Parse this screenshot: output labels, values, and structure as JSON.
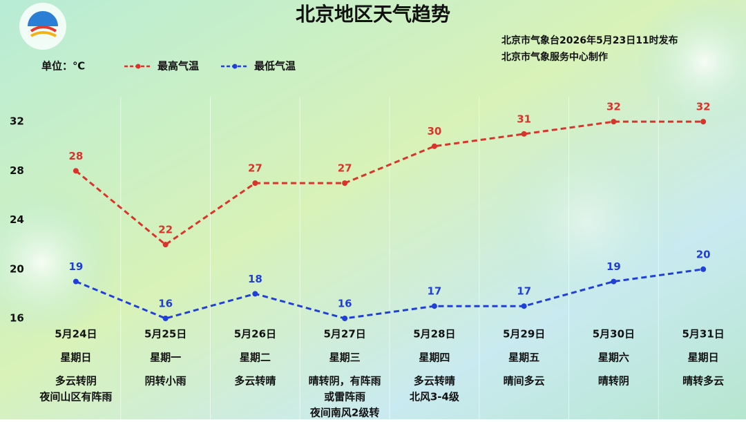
{
  "chart_data": {
    "type": "line",
    "title": "北京地区天气趋势",
    "publisher": [
      "北京市气象台2026年5月23日11时发布",
      "北京市气象服务中心制作"
    ],
    "unit_label": "单位：℃",
    "categories": [
      "5月24日",
      "5月25日",
      "5月26日",
      "5月27日",
      "5月28日",
      "5月29日",
      "5月30日",
      "5月31日"
    ],
    "weekdays": [
      "星期日",
      "星期一",
      "星期二",
      "星期三",
      "星期四",
      "星期五",
      "星期六",
      "星期日"
    ],
    "weather": [
      [
        "多云转阴",
        "夜间山区有阵雨"
      ],
      [
        "阴转小雨"
      ],
      [
        "多云转晴"
      ],
      [
        "晴转阴，有阵雨",
        "或雷阵雨",
        "夜间南风2级转"
      ],
      [
        "多云转晴",
        "北风3-4级"
      ],
      [
        "晴间多云"
      ],
      [
        "晴转阴"
      ],
      [
        "晴转多云"
      ]
    ],
    "series": [
      {
        "name": "最高气温",
        "color": "#d9342b",
        "values": [
          28,
          22,
          27,
          27,
          30,
          31,
          32,
          32
        ]
      },
      {
        "name": "最低气温",
        "color": "#1f3fd6",
        "values": [
          19,
          16,
          18,
          16,
          17,
          17,
          19,
          20
        ]
      }
    ],
    "ylim": [
      16,
      34
    ],
    "yticks": [
      16,
      20,
      24,
      28,
      32
    ],
    "grid": false,
    "line_style": "dashed"
  }
}
